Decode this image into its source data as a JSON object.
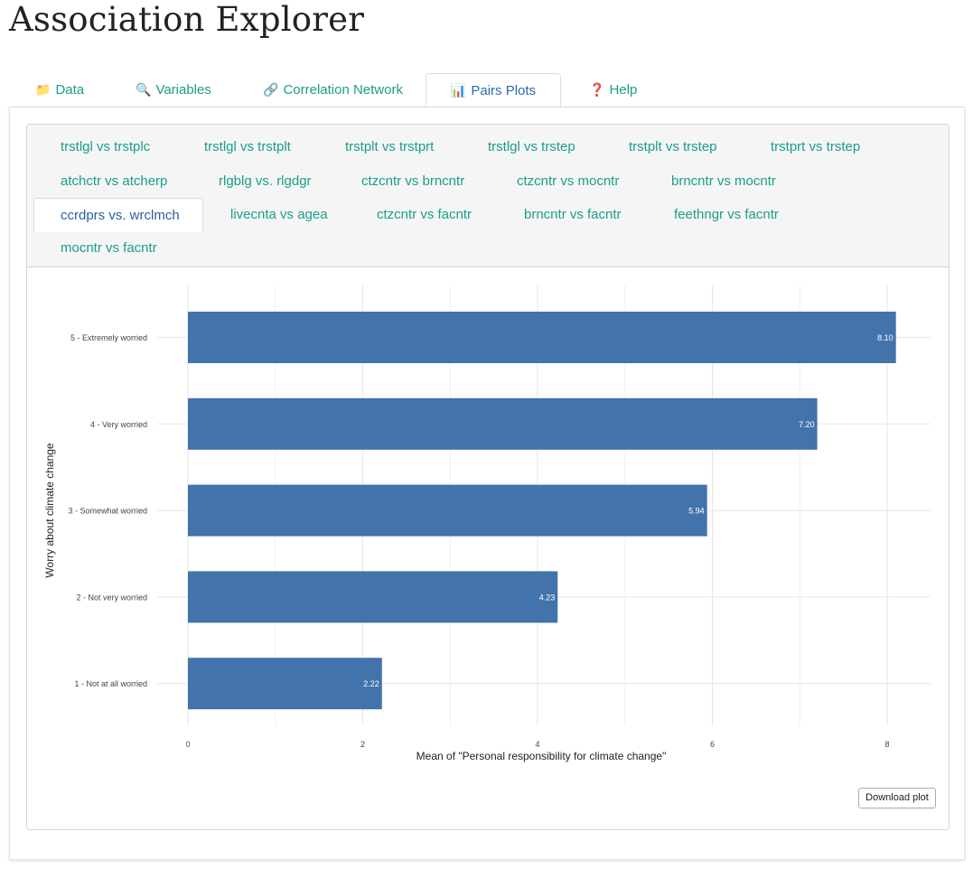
{
  "app": {
    "title": "Association Explorer"
  },
  "main_tabs": [
    {
      "icon": "📁",
      "label": "Data"
    },
    {
      "icon": "🔍",
      "label": "Variables"
    },
    {
      "icon": "🔗",
      "label": "Correlation Network"
    },
    {
      "icon": "📊",
      "label": "Pairs Plots"
    },
    {
      "icon": "❓",
      "label": "Help"
    }
  ],
  "main_tabs_active": "Pairs Plots",
  "pair_tabs": [
    "trstlgl vs trstplc",
    "trstlgl vs trstplt",
    "trstplt vs trstprt",
    "trstlgl vs trstep",
    "trstplt vs trstep",
    "trstprt vs trstep",
    "atchctr vs atcherp",
    "rlgblg vs. rlgdgr",
    "ctzcntr vs brncntr",
    "ctzcntr vs mocntr",
    "brncntr vs mocntr",
    "ccrdprs vs. wrclmch",
    "livecnta vs agea",
    "ctzcntr vs facntr",
    "brncntr vs facntr",
    "feethngr vs facntr",
    "mocntr vs facntr"
  ],
  "pair_tabs_active": "ccrdprs vs. wrclmch",
  "chart_data": {
    "type": "bar",
    "orientation": "horizontal",
    "categories": [
      "5 - Extremely worried",
      "4 - Very worried",
      "3 - Somewhat worried",
      "2 - Not very worried",
      "1 - Not at all worried"
    ],
    "values": [
      8.1,
      7.2,
      5.94,
      4.23,
      2.22
    ],
    "value_labels": [
      "8.10",
      "7.20",
      "5.94",
      "4.23",
      "2.22"
    ],
    "xlabel": "Mean of \"Personal responsibility for climate change\"",
    "ylabel": "Worry about climate change",
    "xlim": [
      0,
      8.5
    ],
    "xticks": [
      0,
      2,
      4,
      6,
      8
    ],
    "grid": true,
    "bar_color": "#4273aa"
  },
  "download": {
    "label": "Download plot"
  }
}
